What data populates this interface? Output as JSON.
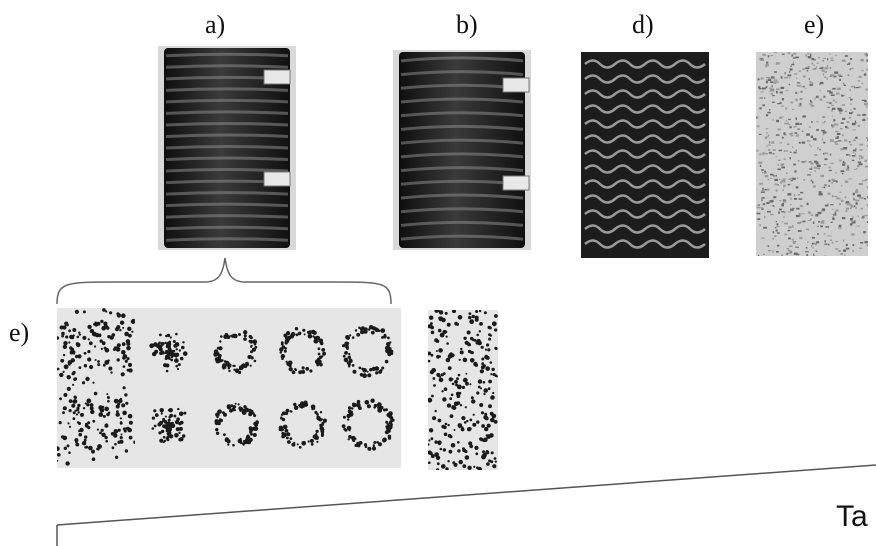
{
  "labels": {
    "a": "a)",
    "b": "b)",
    "d": "d)",
    "e_top": "e)",
    "e_left": "e)",
    "axis": "Ta"
  },
  "colors": {
    "cylinder_dark": "#262626",
    "band_light": "#8a8a8a",
    "turbulent_bg": "#c8c8c8",
    "particle": "#1a1a1a",
    "line": "#555555"
  }
}
